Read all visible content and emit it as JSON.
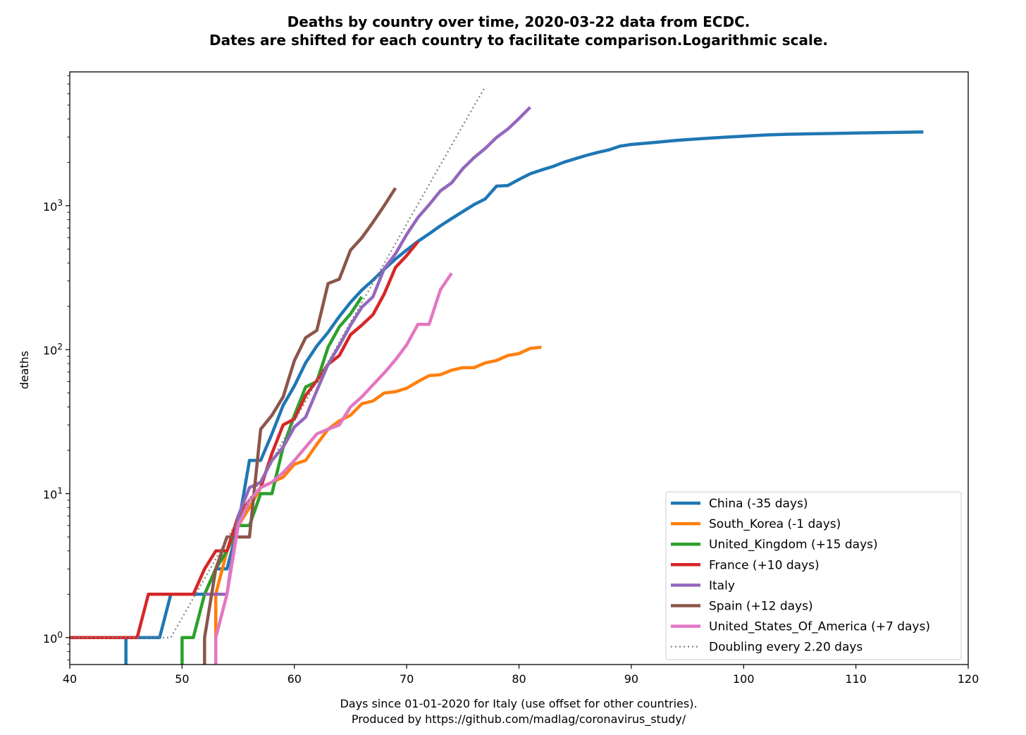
{
  "chart_data": {
    "type": "line",
    "title_lines": [
      "Deaths by country over time, 2020-03-22 data from ECDC.",
      "Dates are shifted for each country to facilitate comparison.Logarithmic scale."
    ],
    "xlabel_lines": [
      "Days since 01-01-2020 for Italy (use offset for other countries).",
      "Produced by https://github.com/madlag/coronavirus_study/"
    ],
    "ylabel": "deaths",
    "x_scale": "linear",
    "y_scale": "log",
    "xlim": [
      40,
      120
    ],
    "ylim": [
      0.65,
      8500
    ],
    "x_ticks": [
      40,
      50,
      60,
      70,
      80,
      90,
      100,
      110,
      120
    ],
    "y_ticks": [
      {
        "value": 1,
        "base": "10",
        "exp": "0"
      },
      {
        "value": 10,
        "base": "10",
        "exp": "1"
      },
      {
        "value": 100,
        "base": "10",
        "exp": "2"
      },
      {
        "value": 1000,
        "base": "10",
        "exp": "3"
      }
    ],
    "legend_position": "lower-right",
    "series": [
      {
        "name": "China (-35 days)",
        "color": "#1f77b4",
        "style": "solid",
        "x": [
          45,
          45,
          46,
          47,
          48,
          49,
          50,
          51,
          52,
          53,
          54,
          55,
          56,
          57,
          58,
          59,
          60,
          61,
          62,
          63,
          64,
          65,
          66,
          67,
          68,
          69,
          70,
          71,
          72,
          73,
          74,
          75,
          76,
          77,
          78,
          79,
          80,
          81,
          82,
          83,
          84,
          85,
          86,
          87,
          88,
          89,
          90,
          92,
          94,
          96,
          98,
          100,
          102,
          104,
          106,
          108,
          110,
          112,
          114,
          116
        ],
        "y": [
          0.65,
          1,
          1,
          1,
          1,
          2,
          2,
          2,
          2,
          3,
          3,
          6,
          17,
          17,
          26,
          41,
          56,
          81,
          106,
          132,
          170,
          213,
          259,
          304,
          362,
          426,
          492,
          565,
          638,
          724,
          813,
          910,
          1018,
          1115,
          1367,
          1380,
          1523,
          1665,
          1770,
          1868,
          2004,
          2118,
          2236,
          2345,
          2442,
          2592,
          2663,
          2744,
          2838,
          2915,
          2981,
          3042,
          3099,
          3136,
          3158,
          3173,
          3194,
          3213,
          3237,
          3255
        ]
      },
      {
        "name": "South_Korea (-1 days)",
        "color": "#ff7f0e",
        "style": "solid",
        "x": [
          53,
          53,
          54,
          55,
          56,
          57,
          58,
          59,
          60,
          61,
          62,
          63,
          64,
          65,
          66,
          67,
          68,
          69,
          70,
          71,
          72,
          73,
          74,
          75,
          76,
          77,
          78,
          79,
          80,
          81,
          82
        ],
        "y": [
          0.65,
          2,
          4,
          6,
          8,
          11,
          12,
          13,
          16,
          17,
          22,
          28,
          32,
          35,
          42,
          44,
          50,
          51,
          54,
          60,
          66,
          67,
          72,
          75,
          75,
          81,
          84,
          91,
          94,
          102,
          104
        ]
      },
      {
        "name": "United_Kingdom (+15 days)",
        "color": "#2ca02c",
        "style": "solid",
        "x": [
          50,
          50,
          51,
          52,
          53,
          54,
          55,
          56,
          57,
          58,
          59,
          60,
          61,
          62,
          63,
          64,
          65,
          66
        ],
        "y": [
          0.65,
          1,
          1,
          2,
          3,
          4,
          6,
          6,
          10,
          10,
          21,
          35,
          55,
          60,
          104,
          144,
          177,
          233
        ]
      },
      {
        "name": "France (+10 days)",
        "color": "#d62728",
        "style": "solid",
        "x": [
          40,
          46,
          47,
          48,
          49,
          50,
          51,
          52,
          53,
          54,
          55,
          56,
          57,
          58,
          59,
          60,
          61,
          62,
          63,
          64,
          65,
          66,
          67,
          68,
          69,
          70,
          71
        ],
        "y": [
          1,
          1,
          2,
          2,
          2,
          2,
          2,
          3,
          4,
          4,
          7,
          9,
          11,
          19,
          30,
          33,
          48,
          61,
          79,
          91,
          127,
          148,
          175,
          244,
          372,
          450,
          562
        ]
      },
      {
        "name": "Italy",
        "color": "#9467bd",
        "style": "solid",
        "x": [
          52,
          53,
          54,
          55,
          56,
          57,
          58,
          59,
          60,
          61,
          62,
          63,
          64,
          65,
          66,
          67,
          68,
          69,
          70,
          71,
          72,
          73,
          74,
          75,
          76,
          77,
          78,
          79,
          80,
          81
        ],
        "y": [
          2,
          2,
          2,
          7,
          11,
          12,
          17,
          21,
          29,
          34,
          52,
          79,
          107,
          148,
          197,
          233,
          366,
          463,
          631,
          827,
          1016,
          1266,
          1441,
          1809,
          2158,
          2503,
          2978,
          3405,
          4032,
          4825
        ]
      },
      {
        "name": "Spain (+12 days)",
        "color": "#8c564b",
        "style": "solid",
        "x": [
          52,
          52,
          53,
          54,
          55,
          56,
          57,
          58,
          59,
          60,
          61,
          62,
          63,
          64,
          65,
          66,
          67,
          68,
          69
        ],
        "y": [
          0.65,
          1,
          3,
          5,
          5,
          5,
          28,
          35,
          47,
          84,
          121,
          136,
          288,
          309,
          491,
          598,
          767,
          1002,
          1326
        ]
      },
      {
        "name": "United_States_Of_America (+7 days)",
        "color": "#e377c2",
        "style": "solid",
        "x": [
          53,
          53,
          54,
          55,
          56,
          57,
          58,
          59,
          60,
          61,
          62,
          63,
          64,
          65,
          66,
          67,
          68,
          69,
          70,
          71,
          72,
          73,
          74
        ],
        "y": [
          0.65,
          1,
          2,
          6,
          9,
          11,
          12,
          14,
          17,
          21,
          26,
          28,
          30,
          40,
          47,
          57,
          69,
          85,
          108,
          150,
          150,
          260,
          340
        ]
      },
      {
        "name": "Doubling every 2.20 days",
        "color": "#7f7f7f",
        "style": "dotted",
        "x": [
          40,
          49,
          50,
          51,
          52,
          53,
          54,
          55,
          56,
          57,
          58,
          59,
          60,
          61,
          62,
          63,
          64,
          65,
          66,
          67,
          68,
          69,
          70,
          71,
          72,
          73,
          74,
          75,
          76,
          77
        ],
        "y": [
          1,
          1,
          1.37,
          1.88,
          2.57,
          3.52,
          4.83,
          6.62,
          9.07,
          12.4,
          17.0,
          23.3,
          32.0,
          43.8,
          60.0,
          82.3,
          113,
          155,
          212,
          290,
          398,
          545,
          746,
          1023,
          1402,
          1921,
          2632,
          3606,
          4941,
          6700
        ]
      }
    ]
  }
}
